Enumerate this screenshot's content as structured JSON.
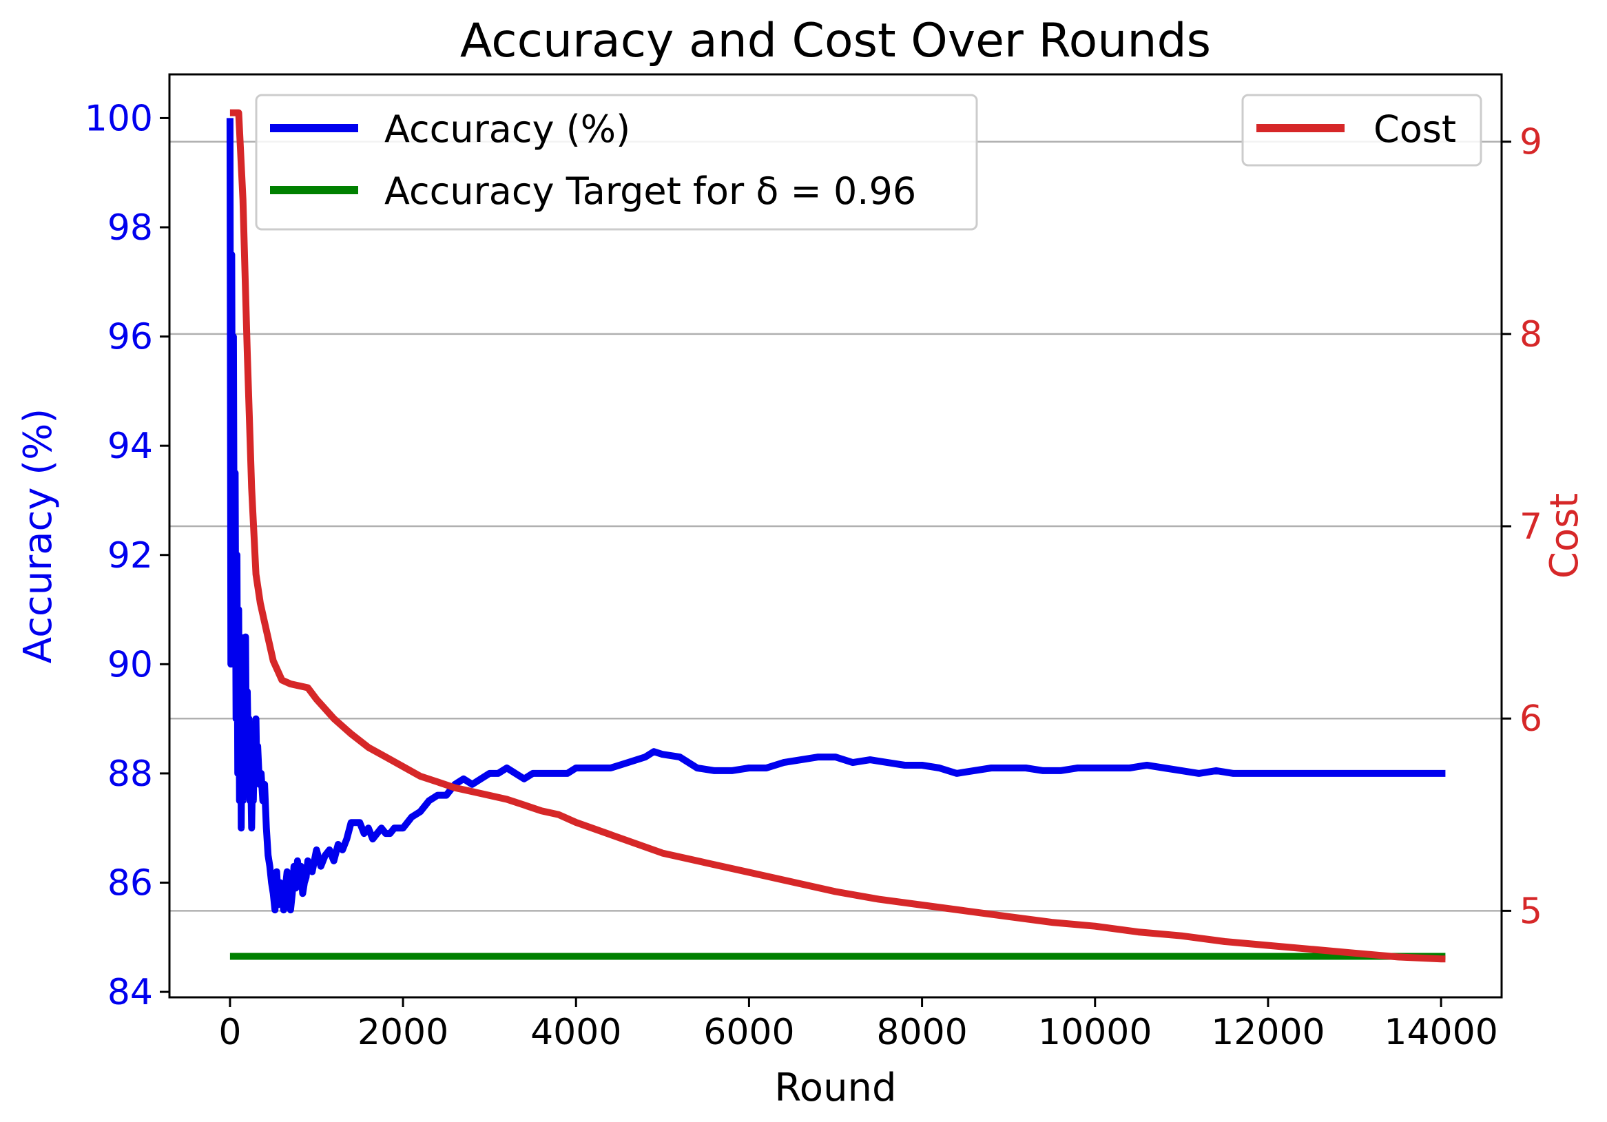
{
  "chart_data": {
    "type": "line",
    "title": "Accuracy and Cost Over Rounds",
    "xlabel": "Round",
    "ylabel_left": "Accuracy (%)",
    "ylabel_right": "Cost",
    "xlim": [
      -700,
      14700
    ],
    "ylim_left": [
      83.9,
      100.8
    ],
    "ylim_right": [
      4.55,
      9.35
    ],
    "x_ticks": [
      0,
      2000,
      4000,
      6000,
      8000,
      10000,
      12000,
      14000
    ],
    "x_tick_labels": [
      "0",
      "2000",
      "4000",
      "6000",
      "8000",
      "10000",
      "12000",
      "14000"
    ],
    "y_ticks_left": [
      84,
      86,
      88,
      90,
      92,
      94,
      96,
      98,
      100
    ],
    "y_tick_labels_left": [
      "84",
      "86",
      "88",
      "90",
      "92",
      "94",
      "96",
      "98",
      "100"
    ],
    "y_ticks_right": [
      5,
      6,
      7,
      8,
      9
    ],
    "y_tick_labels_right": [
      "5",
      "6",
      "7",
      "8",
      "9"
    ],
    "grid": "horizontal (right axis)",
    "legend_left": {
      "placement": "upper-left",
      "entries": [
        "Accuracy (%)",
        "Accuracy Target for δ = 0.96"
      ]
    },
    "legend_right": {
      "placement": "upper-right",
      "entries": [
        "Cost"
      ]
    },
    "colors": {
      "accuracy": "#0000ee",
      "target": "#008000",
      "cost": "#d62728",
      "left_axis": "#0000ee",
      "right_axis": "#d62728"
    },
    "series": [
      {
        "name": "Accuracy (%)",
        "axis": "left",
        "x": [
          0,
          10,
          20,
          30,
          40,
          50,
          60,
          70,
          80,
          90,
          100,
          110,
          120,
          130,
          140,
          150,
          160,
          170,
          180,
          190,
          200,
          210,
          220,
          230,
          240,
          250,
          260,
          270,
          280,
          290,
          300,
          310,
          320,
          340,
          360,
          380,
          400,
          420,
          440,
          460,
          480,
          500,
          520,
          540,
          560,
          580,
          600,
          620,
          640,
          660,
          680,
          700,
          720,
          740,
          760,
          780,
          800,
          820,
          840,
          860,
          880,
          900,
          950,
          1000,
          1050,
          1100,
          1150,
          1200,
          1250,
          1300,
          1350,
          1400,
          1450,
          1500,
          1550,
          1600,
          1650,
          1700,
          1750,
          1800,
          1850,
          1900,
          1950,
          2000,
          2100,
          2200,
          2300,
          2400,
          2500,
          2600,
          2700,
          2800,
          2900,
          3000,
          3100,
          3200,
          3300,
          3400,
          3500,
          3600,
          3700,
          3800,
          3900,
          4000,
          4200,
          4400,
          4600,
          4800,
          4900,
          5000,
          5200,
          5400,
          5600,
          5800,
          6000,
          6200,
          6400,
          6600,
          6800,
          7000,
          7200,
          7400,
          7600,
          7800,
          8000,
          8200,
          8400,
          8600,
          8800,
          9000,
          9200,
          9400,
          9600,
          9800,
          10000,
          10200,
          10400,
          10600,
          10800,
          11000,
          11200,
          11400,
          11600,
          11800,
          12000,
          12200,
          12400,
          12600,
          12800,
          13000,
          13200,
          13400,
          13600,
          13800,
          14000,
          14050
        ],
        "values": [
          100.0,
          90.0,
          97.5,
          91.0,
          96.0,
          90.5,
          93.5,
          89.0,
          92.0,
          88.0,
          91.0,
          87.5,
          90.5,
          87.0,
          89.5,
          87.5,
          89.0,
          88.0,
          90.5,
          88.0,
          89.5,
          88.5,
          89.0,
          87.5,
          88.0,
          87.0,
          88.0,
          87.5,
          88.5,
          88.0,
          89.0,
          88.0,
          88.5,
          87.8,
          88.0,
          87.5,
          87.8,
          87.0,
          86.5,
          86.3,
          86.0,
          85.8,
          85.5,
          86.2,
          85.6,
          86.0,
          85.8,
          85.5,
          85.9,
          86.2,
          85.7,
          85.5,
          85.8,
          86.3,
          85.9,
          86.4,
          86.0,
          86.3,
          85.8,
          86.0,
          86.1,
          86.4,
          86.2,
          86.6,
          86.3,
          86.5,
          86.6,
          86.4,
          86.7,
          86.6,
          86.8,
          87.1,
          87.1,
          87.1,
          86.9,
          87.0,
          86.8,
          86.9,
          87.0,
          86.9,
          86.9,
          87.0,
          87.0,
          87.0,
          87.2,
          87.3,
          87.5,
          87.6,
          87.6,
          87.8,
          87.9,
          87.8,
          87.9,
          88.0,
          88.0,
          88.1,
          88.0,
          87.9,
          88.0,
          88.0,
          88.0,
          88.0,
          88.0,
          88.1,
          88.1,
          88.1,
          88.2,
          88.3,
          88.4,
          88.35,
          88.3,
          88.1,
          88.05,
          88.05,
          88.1,
          88.1,
          88.2,
          88.25,
          88.3,
          88.3,
          88.2,
          88.25,
          88.2,
          88.15,
          88.15,
          88.1,
          88.0,
          88.05,
          88.1,
          88.1,
          88.1,
          88.05,
          88.05,
          88.1,
          88.1,
          88.1,
          88.1,
          88.15,
          88.1,
          88.05,
          88.0,
          88.05,
          88.0,
          88.0,
          88.0,
          88.0,
          88.0,
          88.0,
          88.0,
          88.0,
          88.0,
          88.0,
          88.0,
          88.0,
          88.0,
          88.0
        ]
      },
      {
        "name": "Accuracy Target for δ = 0.96",
        "axis": "left",
        "x": [
          0,
          14050
        ],
        "values": [
          84.65,
          84.65
        ]
      },
      {
        "name": "Cost",
        "axis": "right",
        "x": [
          0,
          100,
          150,
          200,
          250,
          300,
          350,
          400,
          450,
          500,
          550,
          600,
          700,
          800,
          900,
          1000,
          1200,
          1400,
          1600,
          1800,
          2000,
          2200,
          2400,
          2600,
          2800,
          3000,
          3200,
          3400,
          3600,
          3800,
          4000,
          4500,
          5000,
          5500,
          6000,
          6500,
          7000,
          7500,
          8000,
          8500,
          9000,
          9500,
          10000,
          10500,
          11000,
          11500,
          12000,
          12500,
          13000,
          13500,
          14000,
          14050
        ],
        "values": [
          9.15,
          9.15,
          8.7,
          7.9,
          7.2,
          6.75,
          6.6,
          6.5,
          6.4,
          6.3,
          6.25,
          6.2,
          6.18,
          6.17,
          6.16,
          6.1,
          6.0,
          5.92,
          5.85,
          5.8,
          5.75,
          5.7,
          5.67,
          5.64,
          5.62,
          5.6,
          5.58,
          5.55,
          5.52,
          5.5,
          5.46,
          5.38,
          5.3,
          5.25,
          5.2,
          5.15,
          5.1,
          5.06,
          5.03,
          5.0,
          4.97,
          4.94,
          4.92,
          4.89,
          4.87,
          4.84,
          4.82,
          4.8,
          4.78,
          4.76,
          4.75,
          4.75
        ]
      }
    ]
  }
}
